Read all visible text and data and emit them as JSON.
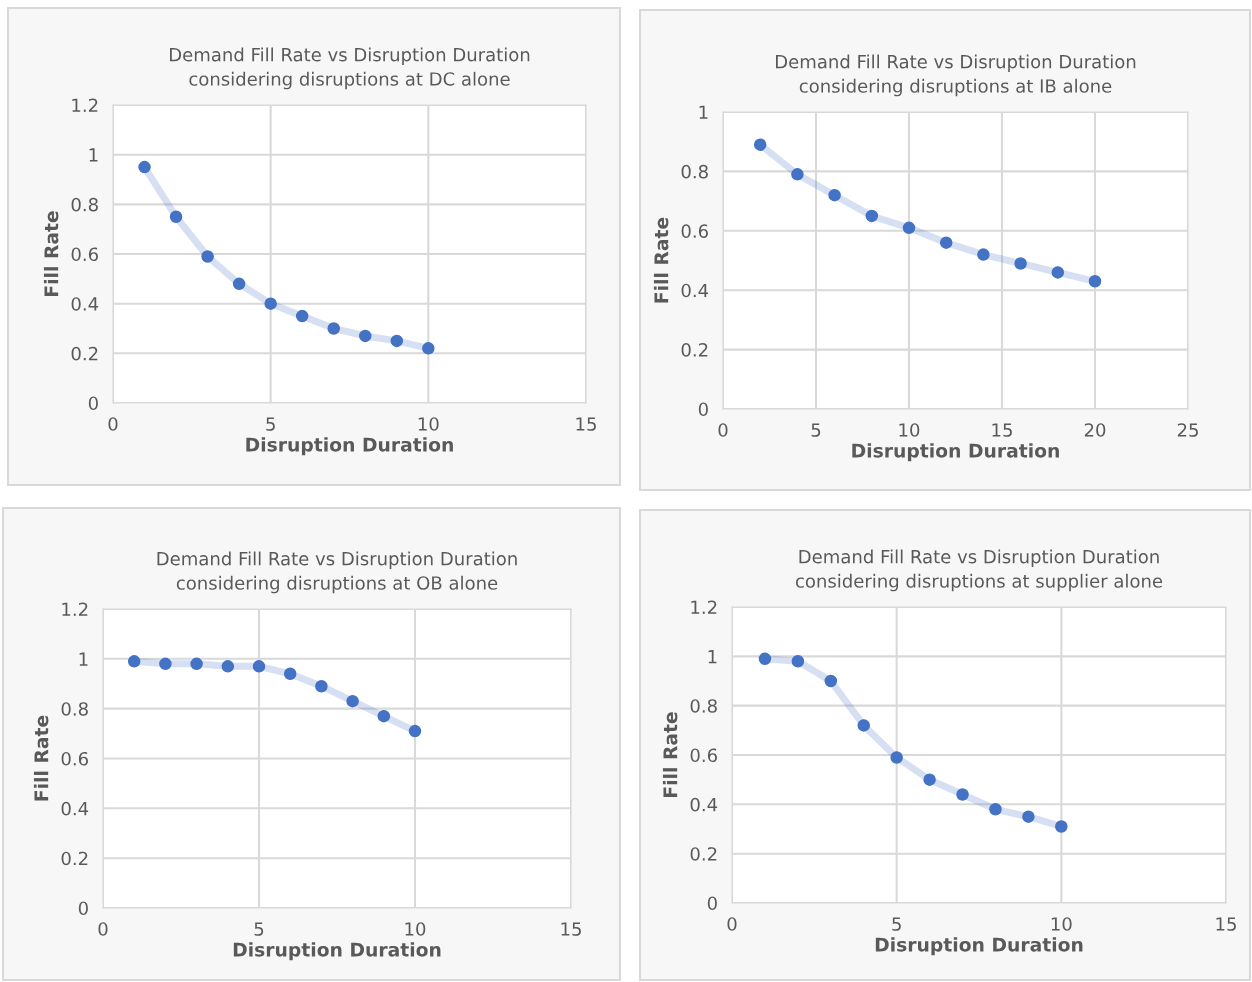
{
  "chart_data": [
    {
      "type": "line",
      "title": "Demand Fill Rate vs Disruption Duration\nconsidering disruptions at DC alone",
      "xlabel": "Disruption Duration",
      "ylabel": "Fill Rate",
      "x": [
        1,
        2,
        3,
        4,
        5,
        6,
        7,
        8,
        9,
        10
      ],
      "series": [
        {
          "color": "#4472c4",
          "values": [
            0.95,
            0.75,
            0.59,
            0.48,
            0.4,
            0.35,
            0.3,
            0.27,
            0.25,
            0.22
          ]
        }
      ],
      "xlim": [
        0,
        15
      ],
      "xticks": [
        0,
        5,
        10,
        15
      ],
      "ylim": [
        0,
        1.2
      ],
      "yticks": [
        0,
        0.2,
        0.4,
        0.6,
        0.8,
        1,
        1.2
      ],
      "grid": true,
      "marker": "circle",
      "line_style": "solid"
    },
    {
      "type": "line",
      "title": "Demand Fill Rate vs Disruption Duration\nconsidering disruptions at IB alone",
      "xlabel": "Disruption Duration",
      "ylabel": "Fill Rate",
      "x": [
        2,
        4,
        6,
        8,
        10,
        12,
        14,
        16,
        18,
        20
      ],
      "series": [
        {
          "color": "#4472c4",
          "values": [
            0.89,
            0.79,
            0.72,
            0.65,
            0.61,
            0.56,
            0.52,
            0.49,
            0.46,
            0.43
          ]
        }
      ],
      "xlim": [
        0,
        25
      ],
      "xticks": [
        0,
        5,
        10,
        15,
        20,
        25
      ],
      "ylim": [
        0,
        1
      ],
      "yticks": [
        0,
        0.2,
        0.4,
        0.6,
        0.8,
        1
      ],
      "grid": true,
      "marker": "circle",
      "line_style": "solid"
    },
    {
      "type": "line",
      "title": "Demand Fill Rate vs Disruption Duration\nconsidering disruptions at OB alone",
      "xlabel": "Disruption Duration",
      "ylabel": "Fill Rate",
      "x": [
        1,
        2,
        3,
        4,
        5,
        6,
        7,
        8,
        9,
        10
      ],
      "series": [
        {
          "color": "#4472c4",
          "values": [
            0.99,
            0.98,
            0.98,
            0.97,
            0.97,
            0.94,
            0.89,
            0.83,
            0.77,
            0.71
          ]
        }
      ],
      "xlim": [
        0,
        15
      ],
      "xticks": [
        0,
        5,
        10,
        15
      ],
      "ylim": [
        0,
        1.2
      ],
      "yticks": [
        0,
        0.2,
        0.4,
        0.6,
        0.8,
        1,
        1.2
      ],
      "grid": true,
      "marker": "circle",
      "line_style": "solid"
    },
    {
      "type": "line",
      "title": "Demand Fill Rate vs Disruption Duration\nconsidering disruptions at supplier alone",
      "xlabel": "Disruption Duration",
      "ylabel": "Fill Rate",
      "x": [
        1,
        2,
        3,
        4,
        5,
        6,
        7,
        8,
        9,
        10
      ],
      "series": [
        {
          "color": "#4472c4",
          "values": [
            0.99,
            0.98,
            0.9,
            0.72,
            0.59,
            0.5,
            0.44,
            0.38,
            0.35,
            0.31
          ]
        }
      ],
      "xlim": [
        0,
        15
      ],
      "xticks": [
        0,
        5,
        10,
        15
      ],
      "ylim": [
        0,
        1.2
      ],
      "yticks": [
        0,
        0.2,
        0.4,
        0.6,
        0.8,
        1,
        1.2
      ],
      "grid": true,
      "marker": "circle",
      "line_style": "solid"
    }
  ]
}
